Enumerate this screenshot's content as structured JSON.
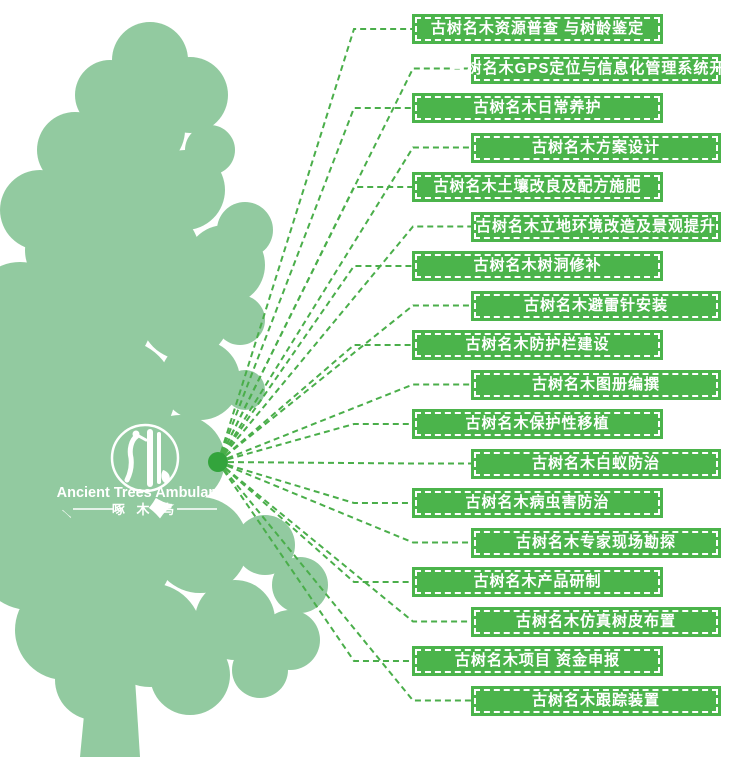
{
  "logo": {
    "name_en": "Ancient Trees Ambulance",
    "name_cn": "啄 木 鸟"
  },
  "services": [
    {
      "label": "古树名木资源普查 与树龄鉴定"
    },
    {
      "label": "古树名木GPS定位与信息化管理系统开发"
    },
    {
      "label": "古树名木日常养护"
    },
    {
      "label": "古树名木方案设计"
    },
    {
      "label": "古树名木土壤改良及配方施肥"
    },
    {
      "label": "古树名木立地环境改造及景观提升"
    },
    {
      "label": "古树名木树洞修补"
    },
    {
      "label": "古树名木避雷针安装"
    },
    {
      "label": "古树名木防护栏建设"
    },
    {
      "label": "古树名木图册编撰"
    },
    {
      "label": "古树名木保护性移植"
    },
    {
      "label": "古树名木白蚁防治"
    },
    {
      "label": "古树名木病虫害防治"
    },
    {
      "label": "古树名木专家现场勘探"
    },
    {
      "label": "古树名木产品研制"
    },
    {
      "label": "古树名木仿真树皮布置"
    },
    {
      "label": "古树名木项目 资金申报"
    },
    {
      "label": "古树名木跟踪装置"
    }
  ],
  "colors": {
    "banner_green": "#4BB44B",
    "tree_green": "#92CAA0",
    "line_green": "#4AAE4A",
    "dot_green": "#33A43C",
    "text_white": "#FFFFFF"
  }
}
